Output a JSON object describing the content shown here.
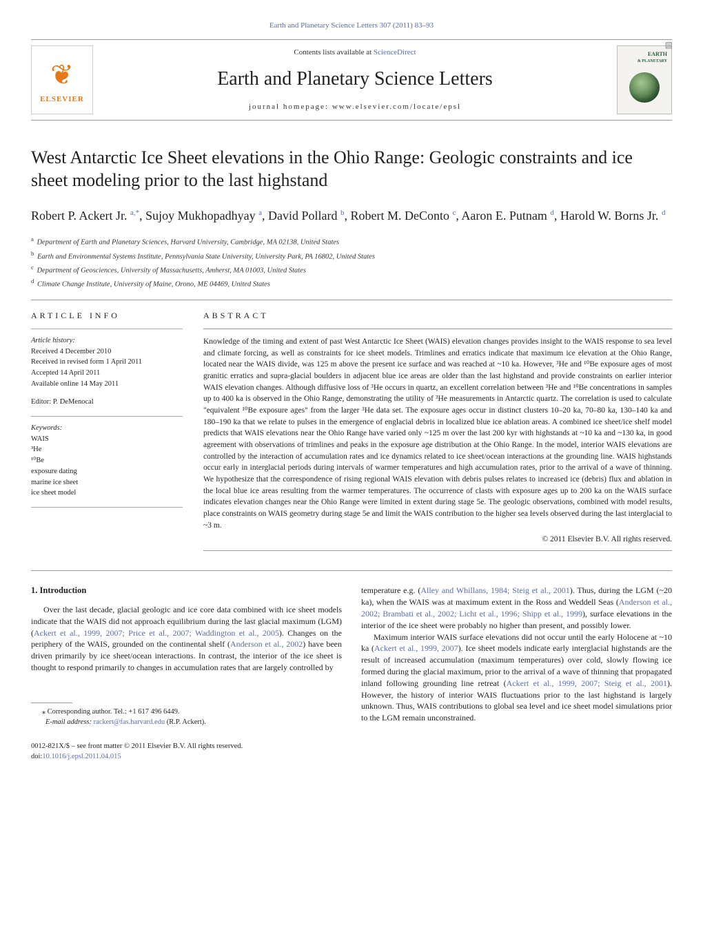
{
  "header": {
    "journal_ref_text": "Earth and Planetary Science Letters 307 (2011) 83–93",
    "contents_prefix": "Contents lists available at ",
    "contents_link": "ScienceDirect",
    "journal_title": "Earth and Planetary Science Letters",
    "homepage_text": "journal homepage: www.elsevier.com/locate/epsl",
    "publisher_logo_text": "ELSEVIER",
    "cover_title": "EARTH",
    "cover_subtitle": "& PLANETARY"
  },
  "article": {
    "title": "West Antarctic Ice Sheet elevations in the Ohio Range: Geologic constraints and ice sheet modeling prior to the last highstand",
    "authors_html": "Robert P. Ackert Jr. <sup class='aff-link'>a,</sup><sup class='corr'>*</sup>, Sujoy Mukhopadhyay <sup class='aff-link'>a</sup>, David Pollard <sup class='aff-link'>b</sup>, Robert M. DeConto <sup class='aff-link'>c</sup>, Aaron E. Putnam <sup class='aff-link'>d</sup>, Harold W. Borns Jr. <sup class='aff-link'>d</sup>",
    "affiliations": [
      {
        "mark": "a",
        "text": "Department of Earth and Planetary Sciences, Harvard University, Cambridge, MA 02138, United States"
      },
      {
        "mark": "b",
        "text": "Earth and Environmental Systems Institute, Pennsylvania State University, University Park, PA 16802, United States"
      },
      {
        "mark": "c",
        "text": "Department of Geosciences, University of Massachusetts, Amherst, MA 01003, United States"
      },
      {
        "mark": "d",
        "text": "Climate Change Institute, University of Maine, Orono, ME 04469, United States"
      }
    ]
  },
  "article_info": {
    "heading": "ARTICLE INFO",
    "history_label": "Article history:",
    "history": [
      "Received 4 December 2010",
      "Received in revised form 1 April 2011",
      "Accepted 14 April 2011",
      "Available online 14 May 2011"
    ],
    "editor_label": "Editor:",
    "editor": " P. DeMenocal",
    "keywords_label": "Keywords:",
    "keywords": [
      "WAIS",
      "³He",
      "¹⁰Be",
      "exposure dating",
      "marine ice sheet",
      "ice sheet model"
    ]
  },
  "abstract": {
    "heading": "ABSTRACT",
    "text": "Knowledge of the timing and extent of past West Antarctic Ice Sheet (WAIS) elevation changes provides insight to the WAIS response to sea level and climate forcing, as well as constraints for ice sheet models. Trimlines and erratics indicate that maximum ice elevation at the Ohio Range, located near the WAIS divide, was 125 m above the present ice surface and was reached at ~10 ka. However, ³He and ¹⁰Be exposure ages of most granitic erratics and supra-glacial boulders in adjacent blue ice areas are older than the last highstand and provide constraints on earlier interior WAIS elevation changes. Although diffusive loss of ³He occurs in quartz, an excellent correlation between ³He and ¹⁰Be concentrations in samples up to 400 ka is observed in the Ohio Range, demonstrating the utility of ³He measurements in Antarctic quartz. The correlation is used to calculate \"equivalent ¹⁰Be exposure ages\" from the larger ³He data set. The exposure ages occur in distinct clusters 10–20 ka, 70–80 ka, 130–140 ka and 180–190 ka that we relate to pulses in the emergence of englacial debris in localized blue ice ablation areas. A combined ice sheet/ice shelf model predicts that WAIS elevations near the Ohio Range have varied only ~125 m over the last 200 kyr with highstands at ~10 ka and ~130 ka, in good agreement with observations of trimlines and peaks in the exposure age distribution at the Ohio Range. In the model, interior WAIS elevations are controlled by the interaction of accumulation rates and ice dynamics related to ice sheet/ocean interactions at the grounding line. WAIS highstands occur early in interglacial periods during intervals of warmer temperatures and high accumulation rates, prior to the arrival of a wave of thinning. We hypothesize that the correspondence of rising regional WAIS elevation with debris pulses relates to increased ice (debris) flux and ablation in the local blue ice areas resulting from the warmer temperatures. The occurrence of clasts with exposure ages up to 200 ka on the WAIS surface indicates elevation changes near the Ohio Range were limited in extent during stage 5e. The geologic observations, combined with model results, place constraints on WAIS geometry during stage 5e and limit the WAIS contribution to the higher sea levels observed during the last interglacial to ~3 m.",
    "copyright": "© 2011 Elsevier B.V. All rights reserved."
  },
  "body": {
    "section_number": "1.",
    "section_title": " Introduction",
    "col1_p1_pre": "Over the last decade, glacial geologic and ice core data combined with ice sheet models indicate that the WAIS did not approach equilibrium during the last glacial maximum (LGM) (",
    "col1_cite1": "Ackert et al., 1999, 2007; Price et al., 2007; Waddington et al., 2005",
    "col1_p1_mid": "). Changes on the periphery of the WAIS, grounded on the continental shelf (",
    "col1_cite2": "Anderson et al., 2002",
    "col1_p1_post": ") have been driven primarily by ice sheet/ocean interactions. In contrast, the interior of the ice sheet is thought to respond primarily to changes in accumulation rates that are largely controlled by",
    "col2_p1_pre": "temperature e.g. (",
    "col2_cite1": "Alley and Whillans, 1984; Steig et al., 2001",
    "col2_p1_mid": "). Thus, during the LGM (~20 ka), when the WAIS was at maximum extent in the Ross and Weddell Seas (",
    "col2_cite2": "Anderson et al., 2002; Brambati et al., 2002; Licht et al., 1996; Shipp et al., 1999",
    "col2_p1_post": "), surface elevations in the interior of the ice sheet were probably no higher than present, and possibly lower.",
    "col2_p2_pre": "Maximum interior WAIS surface elevations did not occur until the early Holocene at ~10 ka (",
    "col2_cite3": "Ackert et al., 1999, 2007",
    "col2_p2_mid": "). Ice sheet models indicate early interglacial highstands are the result of increased accumulation (maximum temperatures) over cold, slowly flowing ice formed during the glacial maximum, prior to the arrival of a wave of thinning that propagated inland following grounding line retreat (",
    "col2_cite4": "Ackert et al., 1999, 2007; Steig et al., 2001",
    "col2_p2_post": "). However, the history of interior WAIS fluctuations prior to the last highstand is largely unknown. Thus, WAIS contributions to global sea level and ice sheet model simulations prior to the LGM remain unconstrained."
  },
  "footnotes": {
    "corr_label": "⁎ Corresponding author. Tel.: ",
    "corr_phone": "+1 617 496 6449.",
    "email_label": "E-mail address: ",
    "email": "rackert@fas.harvard.edu",
    "email_post": " (R.P. Ackert)."
  },
  "footer": {
    "issn_line": "0012-821X/$ – see front matter © 2011 Elsevier B.V. All rights reserved.",
    "doi_prefix": "doi:",
    "doi": "10.1016/j.epsl.2011.04.015"
  },
  "colors": {
    "link": "#5b6ca8",
    "text": "#231f20",
    "elsevier_orange": "#e67817"
  }
}
